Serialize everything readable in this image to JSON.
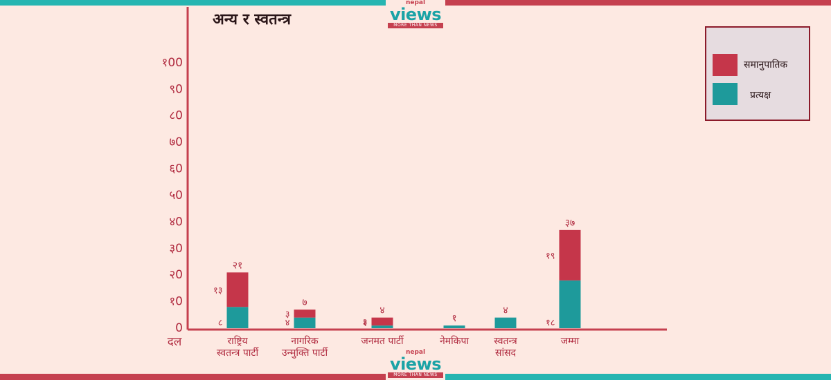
{
  "branding": {
    "logo_small": "nepal",
    "logo_big": "views",
    "logo_tagline": "MORE THAN NEWS",
    "colors": {
      "teal": "#26b5b1",
      "red": "#c5404f",
      "background": "#fde9e2"
    }
  },
  "chart_data": {
    "type": "bar",
    "stacked": true,
    "title": "अन्य र स्वतन्त्र",
    "xlabel": "दल",
    "ylabel": "",
    "ylim": [
      0,
      100
    ],
    "y_ticks": [
      {
        "value": 0,
        "label": "0"
      },
      {
        "value": 10,
        "label": "१0"
      },
      {
        "value": 20,
        "label": "२0"
      },
      {
        "value": 30,
        "label": "३0"
      },
      {
        "value": 40,
        "label": "४0"
      },
      {
        "value": 50,
        "label": "५0"
      },
      {
        "value": 60,
        "label": "६0"
      },
      {
        "value": 70,
        "label": "७0"
      },
      {
        "value": 80,
        "label": "८0"
      },
      {
        "value": 90,
        "label": "९0"
      },
      {
        "value": 100,
        "label": "१00"
      }
    ],
    "categories": [
      {
        "line1": "राष्ट्रिय",
        "line2": "स्वतन्त्र पार्टी"
      },
      {
        "line1": "नागरिक",
        "line2": "उन्मुक्ति पार्टी"
      },
      {
        "line1": "जनमत पार्टी",
        "line2": ""
      },
      {
        "line1": "नेमकिपा",
        "line2": ""
      },
      {
        "line1": "स्वतन्त्र",
        "line2": "सांसद"
      },
      {
        "line1": "जम्मा",
        "line2": ""
      }
    ],
    "series": [
      {
        "name": "प्रत्यक्ष",
        "color": "#1e9a9b",
        "values": [
          8,
          4,
          1,
          1,
          4,
          18
        ],
        "labels": [
          "८",
          "४",
          "१",
          "",
          "",
          "१८"
        ]
      },
      {
        "name": "समानुपातिक",
        "color": "#c5364a",
        "values": [
          13,
          3,
          3,
          0,
          0,
          19
        ],
        "labels": [
          "१३",
          "३",
          "३",
          "",
          "",
          "१९"
        ]
      }
    ],
    "totals": [
      21,
      7,
      4,
      1,
      4,
      37
    ],
    "total_labels": [
      "२१",
      "७",
      "४",
      "१",
      "४",
      "३७"
    ],
    "legend": {
      "position": "top-right",
      "items": [
        {
          "name": "समानुपातिक",
          "color": "#c5364a"
        },
        {
          "name": "प्रत्यक्ष",
          "color": "#1e9a9b"
        }
      ]
    },
    "grid": false
  }
}
